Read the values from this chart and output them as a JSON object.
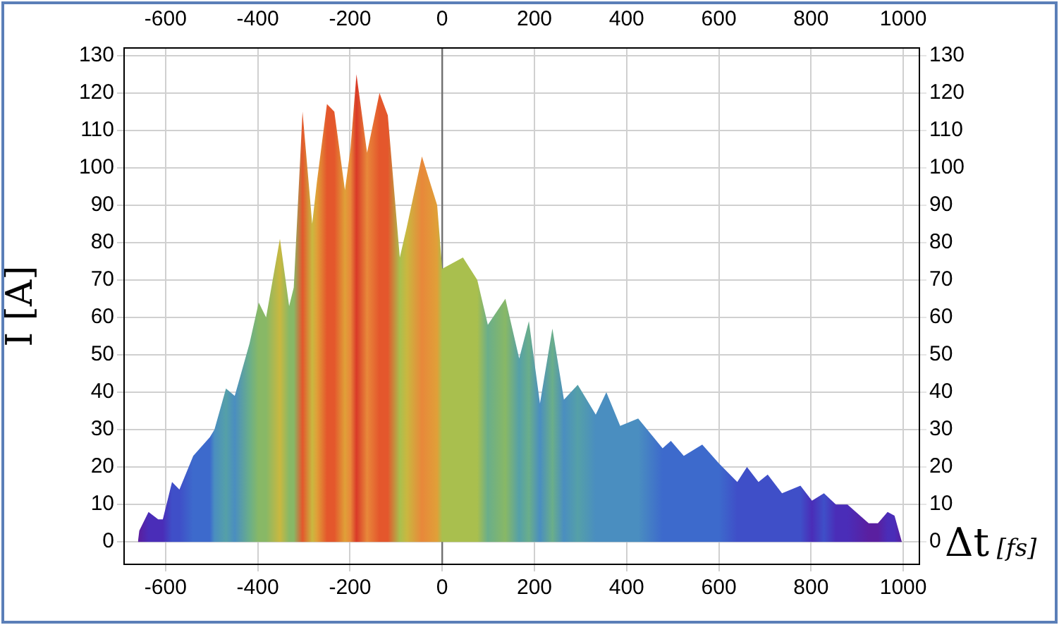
{
  "chart_data": {
    "type": "area",
    "xlabel": "Δt [fs]",
    "ylabel": "I [A]",
    "xlim": [
      -690,
      1035
    ],
    "xticks": [
      -600,
      -400,
      -200,
      0,
      200,
      400,
      600,
      800,
      1000
    ],
    "x2lim": [
      -690,
      1035
    ],
    "x2ticks": [
      -600,
      -400,
      -200,
      0,
      200,
      400,
      600,
      800,
      1000
    ],
    "ylim": [
      -6,
      132
    ],
    "yticks": [
      0,
      10,
      20,
      30,
      40,
      50,
      60,
      70,
      80,
      90,
      100,
      110,
      120,
      130
    ],
    "y2lim": [
      -6,
      132
    ],
    "y2ticks": [
      0,
      10,
      20,
      30,
      40,
      50,
      60,
      70,
      80,
      90,
      100,
      110,
      120,
      130
    ],
    "grid": true,
    "legend": false,
    "ref_lines": [
      {
        "axis": "x",
        "value": 0,
        "color": "#707070"
      }
    ],
    "series": [
      {
        "x": [
          -660,
          -657,
          -637,
          -616,
          -606,
          -586,
          -570,
          -540,
          -504,
          -494,
          -469,
          -450,
          -418,
          -398,
          -382,
          -352,
          -332,
          -322,
          -303,
          -282,
          -272,
          -250,
          -234,
          -211,
          -199,
          -186,
          -163,
          -136,
          -118,
          -92,
          -77,
          -44,
          -11,
          0,
          45,
          76,
          99,
          137,
          167,
          188,
          212,
          239,
          264,
          294,
          333,
          356,
          386,
          425,
          478,
          496,
          524,
          564,
          600,
          640,
          661,
          686,
          706,
          737,
          777,
          802,
          828,
          854,
          879,
          925,
          945,
          966,
          981,
          997
        ],
        "values": [
          0,
          3,
          8,
          6,
          6,
          16,
          14,
          23,
          28,
          30,
          41,
          39,
          53,
          64,
          60,
          81,
          63,
          68,
          115,
          85,
          96,
          117,
          115,
          94,
          105,
          125,
          104,
          120,
          114,
          76,
          84,
          103,
          90,
          73,
          76,
          70,
          58,
          65,
          49,
          59,
          37,
          57,
          38,
          42,
          34,
          40,
          31,
          33,
          25,
          27,
          23,
          26,
          21,
          16,
          20,
          16,
          18,
          13,
          15,
          11,
          13,
          10,
          10,
          5,
          5,
          8,
          7,
          0
        ],
        "colors": [
          "#5a1fa0",
          "#5a1fa0",
          "#4a2db8",
          "#4a2db8",
          "#4a2db8",
          "#3f4fc8",
          "#3f4fc8",
          "#3d6acc",
          "#3d6acc",
          "#4a8ec0",
          "#55a0a8",
          "#4a8ec0",
          "#6aae8a",
          "#88b866",
          "#88b866",
          "#c9b840",
          "#88b866",
          "#88b866",
          "#e4572c",
          "#c9b840",
          "#e0a038",
          "#e4572c",
          "#e4572c",
          "#e0a038",
          "#e8883a",
          "#d93a28",
          "#e8883a",
          "#e4572c",
          "#e4572c",
          "#a9bf4e",
          "#c9b840",
          "#e8883a",
          "#e0a038",
          "#a9bf4e",
          "#a9bf4e",
          "#a9bf4e",
          "#6aae8a",
          "#88b866",
          "#55a0a8",
          "#6aae8a",
          "#4a8ec0",
          "#6aae8a",
          "#4a8ec0",
          "#55a0a8",
          "#4a8ec0",
          "#4a8ec0",
          "#4a8ec0",
          "#4a8ec0",
          "#3d6acc",
          "#3d6acc",
          "#3d6acc",
          "#3d6acc",
          "#3d6acc",
          "#3f4fc8",
          "#3f4fc8",
          "#3f4fc8",
          "#3f4fc8",
          "#3f4fc8",
          "#3f4fc8",
          "#4a2db8",
          "#3f4fc8",
          "#4a2db8",
          "#4a2db8",
          "#5a1fa0",
          "#5a1fa0",
          "#4a2db8",
          "#4a2db8",
          "#5a1fa0"
        ]
      }
    ]
  }
}
